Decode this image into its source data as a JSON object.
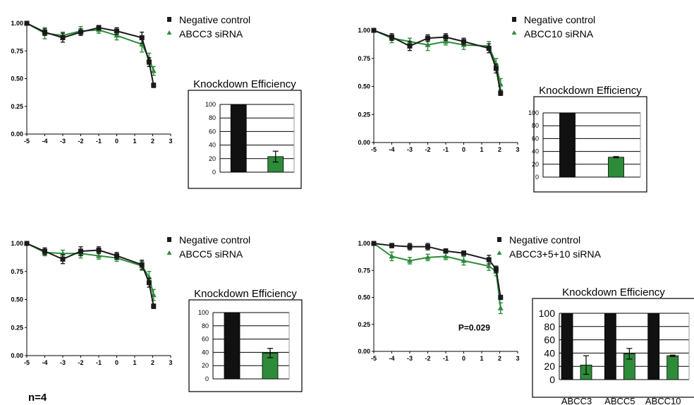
{
  "colors": {
    "control": "#1a1a1a",
    "treated": "#2e8b3a",
    "bar_control": "#111111",
    "bar_treated": "#2e8b3a"
  },
  "footnote": "n=4",
  "chart_data": [
    {
      "type": "line",
      "legend": [
        "Negative control",
        "ABCC3 siRNA"
      ],
      "x_ticks": [
        "-5",
        "-4",
        "-3",
        "-2",
        "-1",
        "0",
        "1",
        "2",
        "3"
      ],
      "y_ticks": [
        "0.00",
        "0.25",
        "0.50",
        "0.75",
        "1.00"
      ],
      "xlim": [
        -5,
        3
      ],
      "ylim": [
        0,
        1
      ],
      "series": [
        {
          "name": "Negative control",
          "color": "#1a1a1a",
          "marker": "square",
          "x": [
            -5,
            -4,
            -3,
            -2,
            -1,
            0,
            1.4,
            1.8,
            2.05
          ],
          "y": [
            1.0,
            0.92,
            0.87,
            0.92,
            0.96,
            0.93,
            0.87,
            0.65,
            0.44
          ],
          "err": [
            0,
            0.03,
            0.04,
            0.03,
            0.02,
            0.03,
            0.05,
            0.04,
            0.02
          ]
        },
        {
          "name": "ABCC3 siRNA",
          "color": "#2e8b3a",
          "marker": "triangle",
          "x": [
            -5,
            -4,
            -3,
            -2,
            -1,
            0,
            1.4,
            1.8,
            2.05
          ],
          "y": [
            1.0,
            0.91,
            0.89,
            0.93,
            0.94,
            0.89,
            0.81,
            0.68,
            0.57
          ],
          "err": [
            0,
            0.05,
            0.03,
            0.04,
            0.03,
            0.04,
            0.07,
            0.05,
            0.04
          ]
        }
      ],
      "knockdown": {
        "title": "Knockdown Efficiency",
        "y_ticks": [
          "0",
          "20",
          "40",
          "60",
          "80",
          "100"
        ],
        "ylim": [
          0,
          100
        ],
        "values": [
          100,
          23
        ],
        "err": [
          0,
          8
        ]
      }
    },
    {
      "type": "line",
      "legend": [
        "Negative control",
        "ABCC10 siRNA"
      ],
      "x_ticks": [
        "-5",
        "-4",
        "-3",
        "-2",
        "-1",
        "0",
        "1",
        "2",
        "3"
      ],
      "y_ticks": [
        "0.00",
        "0.25",
        "0.50",
        "0.75",
        "1.00"
      ],
      "xlim": [
        -5,
        3
      ],
      "ylim": [
        0,
        1
      ],
      "series": [
        {
          "name": "Negative control",
          "color": "#1a1a1a",
          "marker": "square",
          "x": [
            -5,
            -4,
            -3,
            -2,
            -1,
            0,
            1.4,
            1.8,
            2.05
          ],
          "y": [
            1.0,
            0.94,
            0.86,
            0.93,
            0.94,
            0.9,
            0.84,
            0.66,
            0.44
          ],
          "err": [
            0,
            0.03,
            0.04,
            0.03,
            0.03,
            0.03,
            0.04,
            0.04,
            0.02
          ]
        },
        {
          "name": "ABCC10 siRNA",
          "color": "#2e8b3a",
          "marker": "triangle",
          "x": [
            -5,
            -4,
            -3,
            -2,
            -1,
            0,
            1.4,
            1.8,
            2.05
          ],
          "y": [
            1.0,
            0.93,
            0.9,
            0.87,
            0.9,
            0.87,
            0.86,
            0.7,
            0.52
          ],
          "err": [
            0,
            0.04,
            0.03,
            0.05,
            0.03,
            0.04,
            0.04,
            0.05,
            0.05
          ]
        }
      ],
      "knockdown": {
        "title": "Knockdown Efficiency",
        "y_ticks": [
          "0",
          "20",
          "40",
          "60",
          "80",
          "100"
        ],
        "ylim": [
          0,
          100
        ],
        "values": [
          100,
          31
        ],
        "err": [
          0,
          1
        ]
      }
    },
    {
      "type": "line",
      "legend": [
        "Negative control",
        "ABCC5 siRNA"
      ],
      "x_ticks": [
        "-5",
        "-4",
        "-3",
        "-2",
        "-1",
        "0",
        "1",
        "2",
        "3"
      ],
      "y_ticks": [
        "0.00",
        "0.25",
        "0.50",
        "0.75",
        "1.00"
      ],
      "xlim": [
        -5,
        3
      ],
      "ylim": [
        0,
        1
      ],
      "series": [
        {
          "name": "Negative control",
          "color": "#1a1a1a",
          "marker": "square",
          "x": [
            -5,
            -4,
            -3,
            -2,
            -1,
            0,
            1.4,
            1.8,
            2.05
          ],
          "y": [
            1.0,
            0.93,
            0.86,
            0.93,
            0.94,
            0.89,
            0.81,
            0.65,
            0.44
          ],
          "err": [
            0,
            0.03,
            0.04,
            0.04,
            0.03,
            0.03,
            0.04,
            0.04,
            0.02
          ]
        },
        {
          "name": "ABCC5 siRNA",
          "color": "#2e8b3a",
          "marker": "triangle",
          "x": [
            -5,
            -4,
            -3,
            -2,
            -1,
            0,
            1.4,
            1.8,
            2.05
          ],
          "y": [
            1.0,
            0.92,
            0.91,
            0.91,
            0.89,
            0.87,
            0.8,
            0.7,
            0.54
          ],
          "err": [
            0,
            0.03,
            0.03,
            0.04,
            0.03,
            0.03,
            0.04,
            0.05,
            0.05
          ]
        }
      ],
      "knockdown": {
        "title": "Knockdown Efficiency",
        "y_ticks": [
          "0",
          "20",
          "40",
          "60",
          "80",
          "100"
        ],
        "ylim": [
          0,
          100
        ],
        "values": [
          100,
          39
        ],
        "err": [
          0,
          7
        ]
      }
    },
    {
      "type": "line",
      "legend": [
        "Negative control",
        "ABCC3+5+10 siRNA"
      ],
      "x_ticks": [
        "-5",
        "-4",
        "-3",
        "-2",
        "-1",
        "0",
        "1",
        "2",
        "3"
      ],
      "y_ticks": [
        "0.00",
        "0.25",
        "0.50",
        "0.75",
        "1.00"
      ],
      "xlim": [
        -5,
        3
      ],
      "ylim": [
        0,
        1
      ],
      "annotation": "P=0.029",
      "series": [
        {
          "name": "Negative control",
          "color": "#1a1a1a",
          "marker": "square",
          "x": [
            -5,
            -4,
            -3,
            -2,
            -1,
            0,
            1.4,
            1.8,
            2.05
          ],
          "y": [
            1.0,
            0.98,
            0.97,
            0.97,
            0.93,
            0.91,
            0.85,
            0.76,
            0.5
          ],
          "err": [
            0,
            0.02,
            0.03,
            0.03,
            0.02,
            0.02,
            0.04,
            0.03,
            0.02
          ]
        },
        {
          "name": "ABCC3+5+10 siRNA",
          "color": "#2e8b3a",
          "marker": "triangle",
          "x": [
            -5,
            -4,
            -3,
            -2,
            -1,
            0,
            1.4,
            1.8,
            2.05
          ],
          "y": [
            1.0,
            0.88,
            0.84,
            0.87,
            0.88,
            0.84,
            0.79,
            0.74,
            0.4
          ],
          "err": [
            0,
            0.04,
            0.03,
            0.03,
            0.03,
            0.04,
            0.04,
            0.04,
            0.05
          ]
        }
      ],
      "knockdown": {
        "title": "Knockdown Efficiency",
        "y_ticks": [
          "0",
          "20",
          "40",
          "60",
          "80",
          "100"
        ],
        "ylim": [
          0,
          100
        ],
        "categories": [
          "ABCC3",
          "ABCC5",
          "ABCC10"
        ],
        "values": [
          [
            100,
            22
          ],
          [
            100,
            39
          ],
          [
            100,
            36
          ]
        ],
        "err": [
          [
            0,
            14
          ],
          [
            0,
            8
          ],
          [
            0,
            1
          ]
        ]
      }
    }
  ]
}
